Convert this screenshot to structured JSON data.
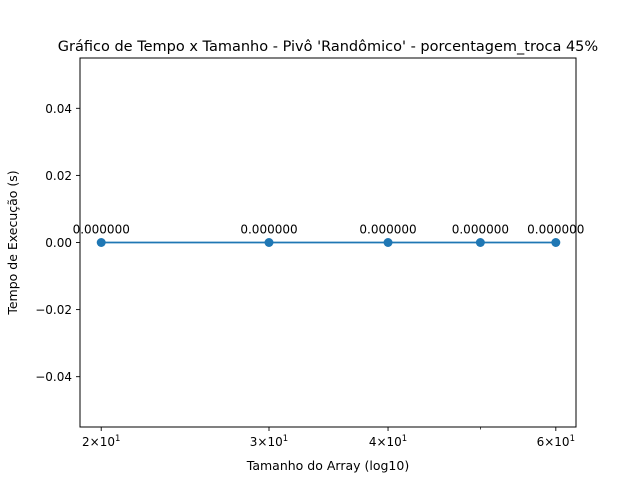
{
  "chart_data": {
    "type": "line",
    "title": "Gráfico de Tempo x Tamanho - Pivô 'Randômico' - porcentagem_troca 45%",
    "xlabel": "Tamanho do Array (log10)",
    "ylabel": "Tempo de Execução (s)",
    "x_scale": "log",
    "xlim": [
      19,
      63
    ],
    "ylim": [
      -0.055,
      0.055
    ],
    "x": [
      20,
      30,
      40,
      50,
      60
    ],
    "series": [
      {
        "values": [
          0.0,
          0.0,
          0.0,
          0.0,
          0.0
        ],
        "data_labels": [
          "0.000000",
          "0.000000",
          "0.000000",
          "0.000000",
          "0.000000"
        ],
        "color": "#1f77b4",
        "marker": "circle"
      }
    ],
    "x_major_ticks": [
      {
        "value": 20,
        "base": "2",
        "exp": "1"
      },
      {
        "value": 30,
        "base": "3",
        "exp": "1"
      },
      {
        "value": 40,
        "base": "4",
        "exp": "1"
      },
      {
        "value": 60,
        "base": "6",
        "exp": "1"
      }
    ],
    "x_minor_ticks": [
      50
    ],
    "y_ticks": [
      {
        "value": 0.04,
        "label": "0.04"
      },
      {
        "value": 0.02,
        "label": "0.02"
      },
      {
        "value": 0.0,
        "label": "0.00"
      },
      {
        "value": -0.02,
        "label": "−0.02"
      },
      {
        "value": -0.04,
        "label": "−0.04"
      }
    ],
    "grid": false,
    "legend": "none"
  }
}
